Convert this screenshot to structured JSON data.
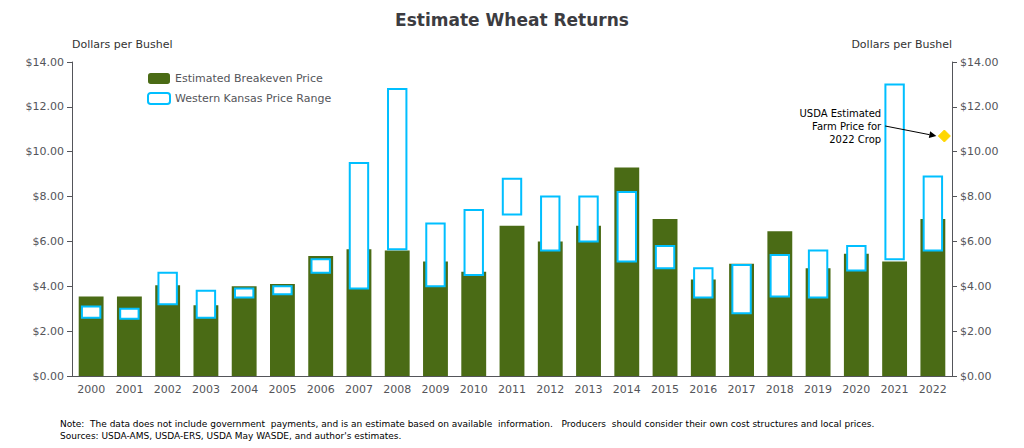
{
  "chart_data": {
    "type": "bar",
    "title": "Estimate Wheat Returns",
    "categories": [
      2000,
      2001,
      2002,
      2003,
      2004,
      2005,
      2006,
      2007,
      2008,
      2009,
      2010,
      2011,
      2012,
      2013,
      2014,
      2015,
      2016,
      2017,
      2018,
      2019,
      2020,
      2021,
      2022
    ],
    "series": [
      {
        "name": "Estimated Breakeven Price",
        "type": "bar",
        "color": "#4a6b15",
        "values": [
          3.55,
          3.55,
          4.05,
          3.15,
          4.0,
          4.1,
          5.35,
          5.65,
          5.6,
          5.1,
          4.65,
          6.7,
          6.0,
          6.7,
          9.3,
          7.0,
          4.3,
          5.0,
          6.45,
          4.8,
          5.45,
          5.1,
          7.0
        ]
      },
      {
        "name": "Western Kansas Price Range",
        "type": "range",
        "color": "#00bfff",
        "low": [
          2.6,
          2.55,
          3.2,
          2.6,
          3.5,
          3.65,
          4.6,
          3.9,
          5.65,
          4.0,
          4.5,
          7.2,
          5.6,
          6.0,
          5.1,
          4.8,
          3.5,
          2.8,
          3.55,
          3.5,
          4.7,
          5.2,
          5.6
        ],
        "high": [
          3.1,
          3.0,
          4.6,
          3.8,
          3.9,
          4.0,
          5.2,
          9.5,
          12.8,
          6.8,
          7.4,
          8.8,
          8.0,
          8.0,
          8.2,
          5.8,
          4.8,
          4.95,
          5.4,
          5.6,
          5.8,
          13.0,
          8.9
        ]
      }
    ],
    "annotations": [
      {
        "text": "USDA Estimated\nFarm Price for\n2022 Crop",
        "x": 2022,
        "y": 10.7,
        "color": "#FFD700",
        "marker": "diamond"
      }
    ],
    "ylabel": "Dollars per Bushel",
    "y2label": "Dollars per Bushel",
    "ylim": [
      0,
      14.0
    ],
    "yticks": [
      {
        "value": 0,
        "label": "$0.00"
      },
      {
        "value": 2,
        "label": "$2.00"
      },
      {
        "value": 4,
        "label": "$4.00"
      },
      {
        "value": 6,
        "label": "$6.00"
      },
      {
        "value": 8,
        "label": "$8.00"
      },
      {
        "value": 10,
        "label": "$10.00"
      },
      {
        "value": 12,
        "label": "$12.00"
      },
      {
        "value": 14,
        "label": "$14.00"
      }
    ],
    "y2lim": [
      0,
      14.0
    ],
    "y2ticks": [
      {
        "value": 0,
        "label": "$0.00"
      },
      {
        "value": 2,
        "label": "$2.00"
      },
      {
        "value": 4,
        "label": "$4.00"
      },
      {
        "value": 6,
        "label": "$6.00"
      },
      {
        "value": 8,
        "label": "$8.00"
      },
      {
        "value": 10,
        "label": "$10.00"
      },
      {
        "value": 12,
        "label": "$12.00"
      },
      {
        "value": 14,
        "label": "$14.00"
      }
    ],
    "grid": false,
    "legend": "upper left",
    "note": "Note:  The data does not include government  payments, and is an estimate based on available  information.   Producers  should consider their own cost structures and local prices.\nSources: USDA-AMS, USDA-ERS, USDA May WASDE, and author's estimates."
  }
}
